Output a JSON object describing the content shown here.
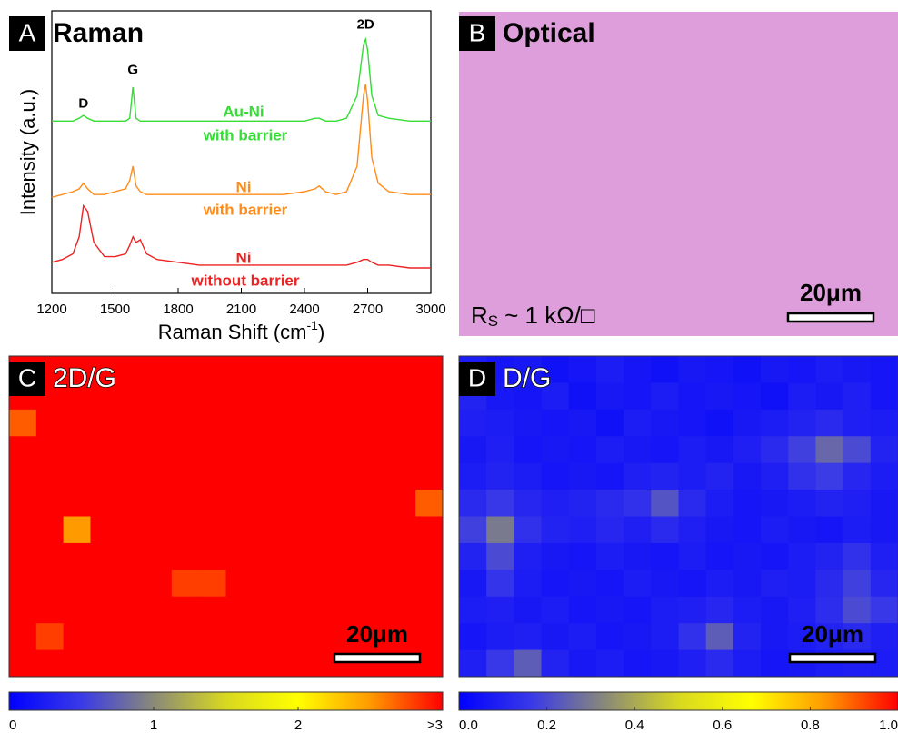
{
  "chart_data": [
    {
      "type": "line",
      "panel_label": "A",
      "title": "Raman",
      "x_label": {
        "main": "Raman Shift (cm",
        "sup": "-1",
        "end": ")"
      },
      "y_label": "Intensity (a.u.)",
      "xlim": [
        1200,
        3000
      ],
      "xticks": [
        1200,
        1500,
        1800,
        2100,
        2400,
        2700,
        3000
      ],
      "ylim": [
        0,
        100
      ],
      "x": [
        1200,
        1250,
        1300,
        1330,
        1350,
        1370,
        1400,
        1450,
        1500,
        1550,
        1570,
        1585,
        1600,
        1620,
        1650,
        1700,
        1800,
        1900,
        2000,
        2100,
        2200,
        2300,
        2400,
        2450,
        2470,
        2500,
        2550,
        2600,
        2650,
        2680,
        2690,
        2700,
        2720,
        2750,
        2800,
        2900,
        3000
      ],
      "series": [
        {
          "name": "Au-Ni",
          "subtitle": "with barrier",
          "color": "#35dd35",
          "values": [
            61,
            61,
            61,
            62,
            63,
            62,
            61,
            61,
            61,
            61,
            62,
            73,
            62,
            61,
            61,
            61,
            61,
            61,
            61,
            61,
            61,
            61,
            61,
            62,
            62,
            61,
            61,
            62,
            70,
            88,
            90,
            86,
            70,
            63,
            62,
            61,
            61
          ]
        },
        {
          "name": "Ni",
          "subtitle": "with barrier",
          "color": "#ff8c1a",
          "values": [
            34,
            35,
            36,
            37,
            39,
            37,
            35,
            35,
            36,
            37,
            40,
            45,
            38,
            36,
            35,
            35,
            35,
            35,
            35,
            35,
            35,
            35,
            36,
            37,
            38,
            36,
            35,
            36,
            45,
            70,
            74,
            68,
            48,
            39,
            36,
            35,
            35
          ]
        },
        {
          "name": "Ni",
          "subtitle": "without barrier",
          "color": "#ee2222",
          "values": [
            11,
            12,
            14,
            20,
            31,
            29,
            18,
            13,
            13,
            14,
            17,
            20,
            18,
            19,
            14,
            12,
            11,
            10,
            10,
            10,
            10,
            10,
            10,
            10,
            10,
            10,
            10,
            10,
            11,
            12,
            12,
            12,
            11,
            10,
            10,
            9,
            9
          ]
        }
      ],
      "annotations": [
        {
          "text": "D",
          "x": 1350,
          "y": 67
        },
        {
          "text": "G",
          "x": 1585,
          "y": 79
        },
        {
          "text": "2D",
          "x": 2690,
          "y": 95
        }
      ]
    },
    {
      "type": "image",
      "panel_label": "B",
      "title": "Optical",
      "color": "#de9ddb",
      "scale_bar": "20μm",
      "sheet_resistance": {
        "main": "R",
        "sub": "S",
        "rest": "~ 1 kΩ/□"
      }
    },
    {
      "type": "heatmap",
      "panel_label": "C",
      "title": "2D/G",
      "scale_bar": "20μm",
      "clim": [
        0,
        3
      ],
      "ticks": [
        0,
        1,
        2,
        {
          "value": 3,
          "label": ">3"
        }
      ],
      "colormap": [
        "#0000ff",
        "#3a3ae8",
        "#8a8a78",
        "#d8d820",
        "#ffff00",
        "#ff9a00",
        "#ff0000"
      ],
      "values": [
        [
          3.2,
          3.2,
          3.2,
          3.2,
          3.2,
          3.2,
          3.2,
          3.2,
          3.2,
          3.2,
          3.2,
          3.2,
          3.2,
          3.2,
          3.2,
          3.2
        ],
        [
          3.2,
          3.2,
          3.2,
          3.2,
          3.2,
          3.2,
          3.2,
          3.2,
          3.2,
          3.2,
          3.2,
          3.2,
          3.2,
          3.2,
          3.2,
          3.2
        ],
        [
          2.7,
          3.2,
          3.2,
          3.2,
          3.2,
          3.2,
          3.2,
          3.2,
          3.2,
          3.2,
          3.2,
          3.2,
          3.2,
          3.2,
          3.2,
          3.2
        ],
        [
          3.2,
          3.2,
          3.2,
          3.2,
          3.2,
          3.2,
          3.2,
          3.2,
          3.2,
          3.2,
          3.2,
          3.2,
          3.2,
          3.2,
          3.2,
          3.2
        ],
        [
          3.2,
          3.2,
          3.2,
          3.2,
          3.2,
          3.2,
          3.2,
          3.2,
          3.2,
          3.2,
          3.2,
          3.2,
          3.2,
          3.2,
          3.2,
          3.2
        ],
        [
          3.2,
          3.2,
          3.2,
          3.2,
          3.2,
          3.2,
          3.2,
          3.2,
          3.2,
          3.2,
          3.2,
          3.2,
          3.2,
          3.2,
          3.2,
          2.7
        ],
        [
          3.2,
          3.2,
          2.5,
          3.2,
          3.2,
          3.2,
          3.2,
          3.2,
          3.2,
          3.2,
          3.2,
          3.2,
          3.2,
          3.2,
          3.2,
          3.2
        ],
        [
          3.2,
          3.2,
          3.2,
          3.2,
          3.2,
          3.2,
          3.2,
          3.2,
          3.2,
          3.2,
          3.2,
          3.2,
          3.2,
          3.2,
          3.2,
          3.2
        ],
        [
          3.2,
          3.2,
          3.2,
          3.2,
          3.2,
          3.2,
          2.8,
          2.8,
          3.2,
          3.2,
          3.2,
          3.2,
          3.2,
          3.2,
          3.2,
          3.2
        ],
        [
          3.2,
          3.2,
          3.2,
          3.2,
          3.2,
          3.2,
          3.2,
          3.2,
          3.2,
          3.2,
          3.2,
          3.2,
          3.2,
          3.2,
          3.2,
          3.2
        ],
        [
          3.2,
          2.8,
          3.2,
          3.2,
          3.2,
          3.2,
          3.2,
          3.2,
          3.2,
          3.2,
          3.2,
          3.2,
          3.2,
          3.2,
          3.2,
          3.2
        ],
        [
          3.2,
          3.2,
          3.2,
          3.2,
          3.2,
          3.2,
          3.2,
          3.2,
          3.2,
          3.2,
          3.2,
          3.2,
          3.2,
          3.2,
          3.2,
          3.2
        ]
      ]
    },
    {
      "type": "heatmap",
      "panel_label": "D",
      "title": "D/G",
      "scale_bar": "20μm",
      "clim": [
        0,
        1
      ],
      "ticks": [
        {
          "value": 0,
          "label": "0.0"
        },
        {
          "value": 0.2,
          "label": "0.2"
        },
        {
          "value": 0.4,
          "label": "0.4"
        },
        {
          "value": 0.6,
          "label": "0.6"
        },
        {
          "value": 0.8,
          "label": "0.8"
        },
        {
          "value": 1,
          "label": "1.0"
        }
      ],
      "colormap": [
        "#0000ff",
        "#3a3ae8",
        "#8a8a78",
        "#d8d820",
        "#ffff00",
        "#ff9a00",
        "#ff0000"
      ],
      "values": [
        [
          0.08,
          0.06,
          0.07,
          0.05,
          0.06,
          0.08,
          0.06,
          0.05,
          0.07,
          0.06,
          0.05,
          0.07,
          0.06,
          0.08,
          0.07,
          0.06
        ],
        [
          0.1,
          0.07,
          0.06,
          0.08,
          0.05,
          0.07,
          0.06,
          0.08,
          0.06,
          0.07,
          0.06,
          0.05,
          0.08,
          0.07,
          0.09,
          0.06
        ],
        [
          0.09,
          0.08,
          0.07,
          0.06,
          0.07,
          0.05,
          0.08,
          0.07,
          0.06,
          0.05,
          0.07,
          0.08,
          0.1,
          0.12,
          0.09,
          0.08
        ],
        [
          0.07,
          0.09,
          0.06,
          0.07,
          0.06,
          0.08,
          0.07,
          0.06,
          0.08,
          0.07,
          0.09,
          0.12,
          0.18,
          0.26,
          0.2,
          0.1
        ],
        [
          0.08,
          0.1,
          0.08,
          0.06,
          0.07,
          0.06,
          0.09,
          0.1,
          0.08,
          0.1,
          0.07,
          0.09,
          0.14,
          0.17,
          0.11,
          0.08
        ],
        [
          0.12,
          0.16,
          0.11,
          0.09,
          0.1,
          0.12,
          0.14,
          0.22,
          0.12,
          0.08,
          0.06,
          0.07,
          0.08,
          0.1,
          0.09,
          0.07
        ],
        [
          0.18,
          0.3,
          0.14,
          0.1,
          0.09,
          0.11,
          0.09,
          0.12,
          0.09,
          0.07,
          0.06,
          0.08,
          0.07,
          0.06,
          0.08,
          0.07
        ],
        [
          0.1,
          0.2,
          0.09,
          0.07,
          0.06,
          0.08,
          0.07,
          0.06,
          0.08,
          0.06,
          0.07,
          0.06,
          0.08,
          0.1,
          0.14,
          0.09
        ],
        [
          0.07,
          0.15,
          0.08,
          0.06,
          0.07,
          0.06,
          0.08,
          0.07,
          0.06,
          0.08,
          0.07,
          0.09,
          0.08,
          0.12,
          0.18,
          0.11
        ],
        [
          0.08,
          0.09,
          0.07,
          0.08,
          0.06,
          0.07,
          0.06,
          0.08,
          0.09,
          0.11,
          0.08,
          0.07,
          0.09,
          0.13,
          0.2,
          0.16
        ],
        [
          0.06,
          0.08,
          0.09,
          0.07,
          0.08,
          0.06,
          0.07,
          0.08,
          0.14,
          0.24,
          0.1,
          0.07,
          0.08,
          0.1,
          0.12,
          0.09
        ],
        [
          0.09,
          0.16,
          0.24,
          0.1,
          0.07,
          0.08,
          0.06,
          0.07,
          0.09,
          0.12,
          0.08,
          0.06,
          0.07,
          0.08,
          0.09,
          0.08
        ]
      ]
    }
  ]
}
